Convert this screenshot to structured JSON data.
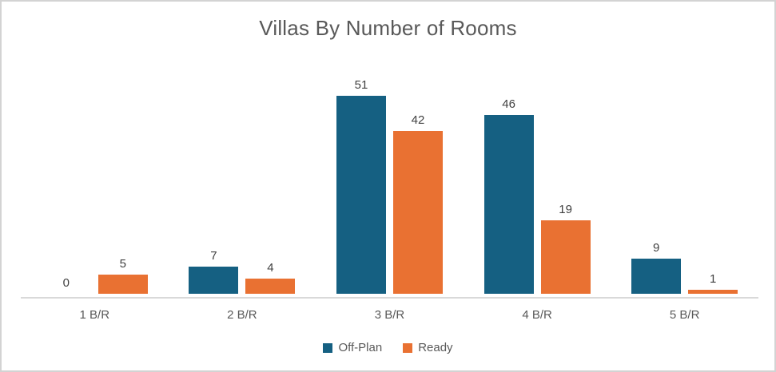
{
  "chart_data": {
    "type": "bar",
    "title": "Villas By Number of Rooms",
    "categories": [
      "1 B/R",
      "2 B/R",
      "3 B/R",
      "4 B/R",
      "5 B/R"
    ],
    "series": [
      {
        "name": "Off-Plan",
        "color": "#156082",
        "values": [
          0,
          7,
          51,
          46,
          9
        ]
      },
      {
        "name": "Ready",
        "color": "#E97132",
        "values": [
          5,
          4,
          42,
          19,
          1
        ]
      }
    ],
    "xlabel": "",
    "ylabel": "",
    "ylim": [
      0,
      51
    ],
    "grid": false,
    "legend_position": "bottom",
    "data_labels": true,
    "colors": {
      "title_text": "#595959",
      "data_label_text": "#404040",
      "axis_line": "#d9d9d9",
      "frame_border": "#d3d3d3"
    }
  }
}
